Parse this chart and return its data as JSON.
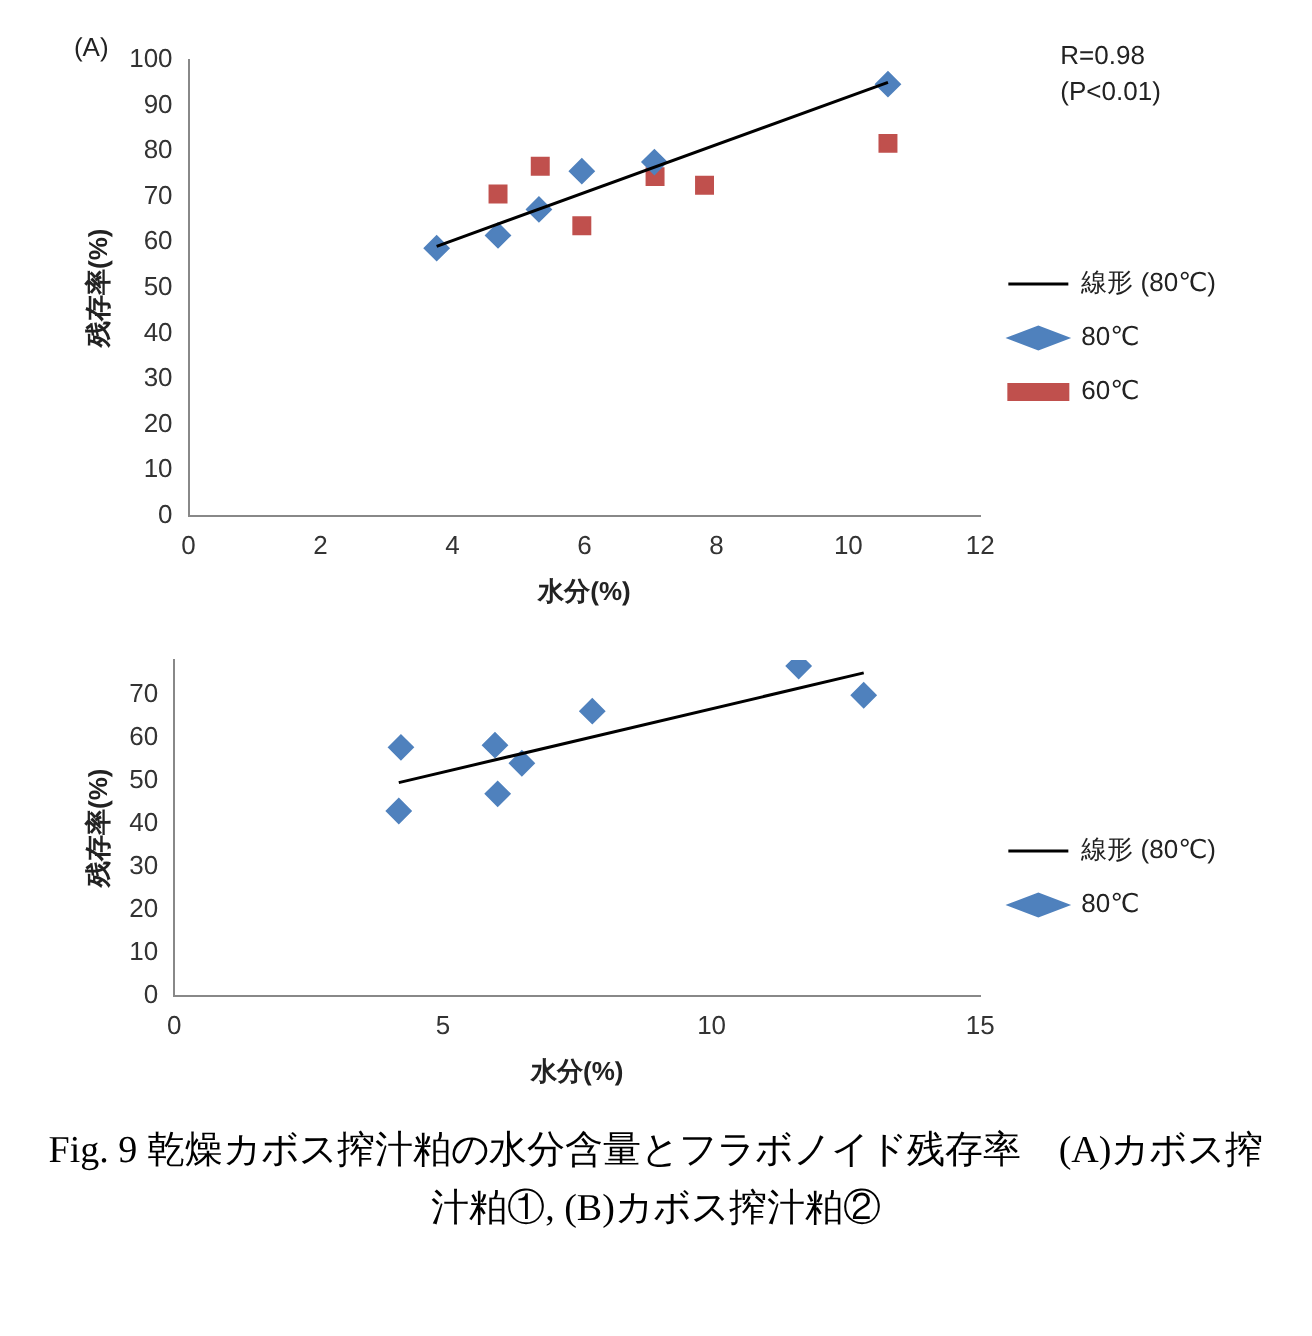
{
  "chart_data": [
    {
      "type": "scatter",
      "xlabel": "水分(%)",
      "ylabel": "残存率(%)",
      "xlim": [
        0,
        12
      ],
      "xticks": [
        0,
        2,
        4,
        6,
        8,
        10,
        12
      ],
      "ylim": [
        0,
        100
      ],
      "yticks": [
        0,
        10,
        20,
        30,
        40,
        50,
        60,
        70,
        80,
        90,
        100
      ],
      "grid": false,
      "legend": "right",
      "annotations": [
        "(A)",
        "R=0.98",
        "(P<0.01)"
      ],
      "series": [
        {
          "name": "80℃",
          "color": "#4f81bd",
          "marker": "diamond",
          "x": [
            3.76,
            4.69,
            5.31,
            5.96,
            7.06,
            10.6
          ],
          "values": [
            58.7,
            61.5,
            67.2,
            75.6,
            77.6,
            94.7
          ]
        },
        {
          "name": "60℃",
          "color": "#c0504d",
          "marker": "square",
          "x": [
            4.69,
            5.33,
            5.96,
            7.07,
            7.82,
            10.6
          ],
          "values": [
            70.6,
            76.7,
            63.6,
            74.4,
            72.5,
            81.7
          ]
        },
        {
          "name": "線形 (80℃)",
          "type": "line",
          "color": "#000000",
          "marker": "none",
          "x": [
            3.76,
            10.6
          ],
          "values": [
            59.1,
            95.1
          ]
        }
      ]
    },
    {
      "type": "scatter",
      "xlabel": "水分(%)",
      "ylabel": "残存率(%)",
      "xlim": [
        0,
        15
      ],
      "xticks": [
        0,
        5,
        10,
        15
      ],
      "ylim": [
        0,
        78
      ],
      "yticks": [
        0,
        10,
        20,
        30,
        40,
        50,
        60,
        70
      ],
      "grid": false,
      "legend": "right",
      "annotations": [
        "Fig. 9 乾燥カボス搾汁粕の水分含量とフラボノイド残存率　(A)カボス搾汁粕①, (B)カボス搾汁粕②"
      ],
      "series": [
        {
          "name": "80℃",
          "color": "#4f81bd",
          "marker": "diamond",
          "x": [
            4.22,
            4.18,
            5.97,
            6.02,
            6.47,
            7.78,
            11.62,
            12.83
          ],
          "values": [
            57.7,
            42.9,
            58.2,
            46.9,
            54.0,
            66.1,
            76.6,
            69.8
          ]
        },
        {
          "name": "線形 (80℃)",
          "type": "line",
          "color": "#000000",
          "marker": "none",
          "x": [
            4.18,
            12.83
          ],
          "values": [
            49.5,
            75.0
          ]
        }
      ]
    }
  ]
}
